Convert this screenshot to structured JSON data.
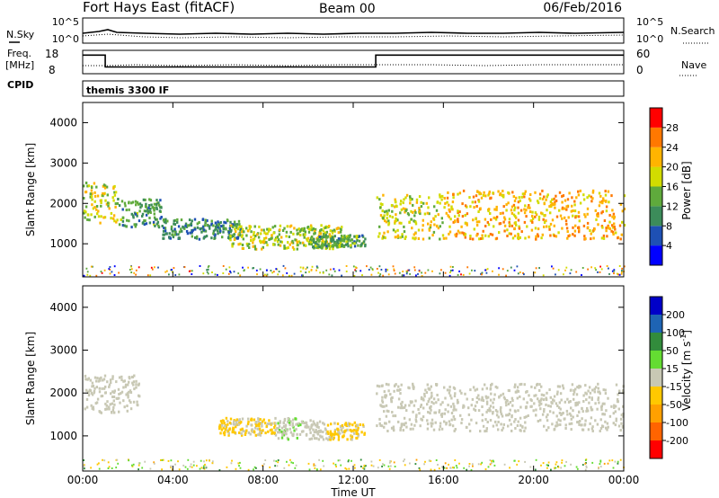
{
  "header": {
    "station": "Fort Hays East (fitACF)",
    "beam": "Beam 00",
    "date": "06/Feb/2016"
  },
  "noise_panel": {
    "left_label": "N.Sky",
    "right_label": "N.Search",
    "left_ticks": [
      "10^5",
      "10^0"
    ],
    "right_ticks": [
      "10^5",
      "10^0"
    ]
  },
  "freq_panel": {
    "left_label_1": "Freq.",
    "left_label_2": "[MHz]",
    "right_label": "Nave",
    "left_ticks": [
      "18",
      "8"
    ],
    "right_ticks": [
      "60",
      "0"
    ],
    "freq_steps": [
      {
        "t0": 0.0,
        "t1": 1.0,
        "value": 16.5
      },
      {
        "t0": 1.0,
        "t1": 13.0,
        "value": 10.5
      },
      {
        "t0": 13.0,
        "t1": 24.0,
        "value": 16.5
      }
    ]
  },
  "cpid": {
    "label": "CPID",
    "program": "themis 3300 IF"
  },
  "x_axis": {
    "label": "Time UT",
    "tick_labels": [
      "00:00",
      "04:00",
      "08:00",
      "12:00",
      "16:00",
      "20:00",
      "00:00"
    ],
    "range_hours": [
      0,
      24
    ]
  },
  "chart_data": [
    {
      "type": "heatmap",
      "panel": "power",
      "ylabel": "Slant Range [km]",
      "ytick_labels": [
        "1000",
        "2000",
        "3000",
        "4000"
      ],
      "ylim": [
        180,
        4500
      ],
      "colorbar": {
        "label": "Power [dB]",
        "tick_labels": [
          "4",
          "8",
          "12",
          "16",
          "20",
          "24",
          "28"
        ],
        "range": [
          0,
          32
        ],
        "colors": [
          "#0000ff",
          "#1e50b4",
          "#3c8c5a",
          "#5faa3c",
          "#d2dc00",
          "#ffb400",
          "#ff7800",
          "#ff0000"
        ]
      },
      "echo_regions": [
        {
          "t0": 0.0,
          "t1": 1.5,
          "r_lo": 1500,
          "r_hi": 2500,
          "power": 18
        },
        {
          "t0": 1.5,
          "t1": 3.5,
          "r_lo": 1400,
          "r_hi": 2100,
          "power": 12
        },
        {
          "t0": 3.5,
          "t1": 7.0,
          "r_lo": 1100,
          "r_hi": 1600,
          "power": 10
        },
        {
          "t0": 6.5,
          "t1": 11.5,
          "r_lo": 850,
          "r_hi": 1450,
          "power": 17
        },
        {
          "t0": 10.0,
          "t1": 12.5,
          "r_lo": 900,
          "r_hi": 1200,
          "power": 12
        },
        {
          "t0": 13.0,
          "t1": 16.0,
          "r_lo": 1100,
          "r_hi": 2200,
          "power": 18
        },
        {
          "t0": 16.0,
          "t1": 24.0,
          "r_lo": 1100,
          "r_hi": 2300,
          "power": 22
        }
      ]
    },
    {
      "type": "heatmap",
      "panel": "velocity",
      "ylabel": "Slant Range [km]",
      "ytick_labels": [
        "1000",
        "2000",
        "3000",
        "4000"
      ],
      "ylim": [
        180,
        4500
      ],
      "colorbar": {
        "label": "Velocity [m s",
        "label_sup": "-1",
        "label_tail": "]",
        "tick_labels": [
          "-200",
          "-100",
          "-50",
          "-15",
          "15",
          "50",
          "100",
          "200"
        ],
        "range": [
          -250,
          250
        ],
        "colors": [
          "#ff0000",
          "#ff6400",
          "#ffa000",
          "#ffc800",
          "#c8c8b4",
          "#64dc32",
          "#328c3c",
          "#1e64b4",
          "#0000c8"
        ]
      },
      "echo_regions": [
        {
          "t0": 0.0,
          "t1": 2.5,
          "r_lo": 1500,
          "r_hi": 2400,
          "velocity": 0
        },
        {
          "t0": 6.0,
          "t1": 8.5,
          "r_lo": 1000,
          "r_hi": 1400,
          "velocity": -30
        },
        {
          "t0": 8.5,
          "t1": 9.8,
          "r_lo": 900,
          "r_hi": 1400,
          "velocity": 25
        },
        {
          "t0": 9.8,
          "t1": 10.8,
          "r_lo": 900,
          "r_hi": 1350,
          "velocity": 0
        },
        {
          "t0": 10.8,
          "t1": 12.5,
          "r_lo": 900,
          "r_hi": 1300,
          "velocity": -30
        },
        {
          "t0": 13.0,
          "t1": 24.0,
          "r_lo": 1100,
          "r_hi": 2200,
          "velocity": 0
        }
      ]
    }
  ]
}
